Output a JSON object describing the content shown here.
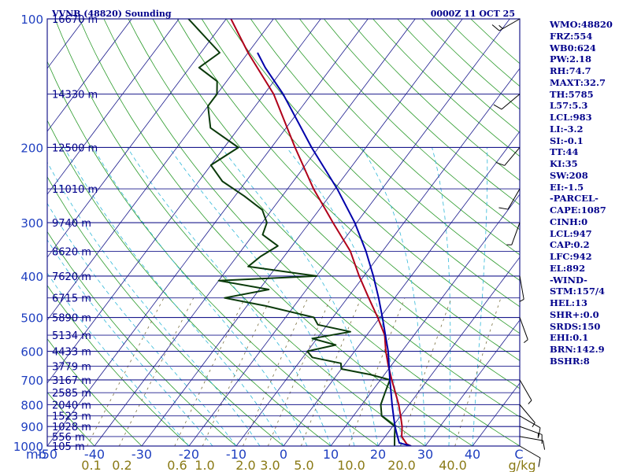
{
  "header": {
    "station": "VVNB (48820) Sounding",
    "time": "0000Z 11 OCT 25"
  },
  "indices": [
    "WMO:48820",
    "FRZ:554",
    "WB0:624",
    "PW:2.18",
    "RH:74.7",
    "MAXT:32.7",
    "TH:5785",
    "L57:5.3",
    "LCL:983",
    "LI:-3.2",
    "SI:-0.1",
    "TT:44",
    "KI:35",
    "SW:208",
    "EI:-1.5",
    "-PARCEL-",
    "CAPE:1087",
    "CINH:0",
    "LCL:947",
    "CAP:0.2",
    "LFC:942",
    "EL:892",
    "-WIND-",
    "STM:157/4",
    "HEL:13",
    "SHR+:0.0",
    "SRDS:150",
    "EHI:0.1",
    "BRN:142.9",
    "BSHR:8"
  ],
  "chart_data": {
    "type": "line",
    "diagram": "skew-T log-P",
    "pressure_axis": {
      "unit_label": "mb",
      "ticks": [
        100,
        200,
        300,
        400,
        500,
        600,
        700,
        800,
        900,
        1000
      ],
      "range": [
        1000,
        100
      ],
      "scale": "log"
    },
    "temperature_axis": {
      "unit_label": "C",
      "tick_labels": [
        "-50",
        "-40",
        "-30",
        "-20",
        "-10",
        "0",
        "10",
        "20",
        "30",
        "40"
      ],
      "ticks": [
        -50,
        -40,
        -30,
        -20,
        -10,
        0,
        10,
        20,
        30,
        40
      ],
      "range": [
        -50,
        50
      ]
    },
    "mixing_ratio_axis": {
      "unit_label": "g/kg",
      "tick_labels": [
        "0.1",
        "0.2",
        "0.6",
        "1.0",
        "2.0",
        "3.0",
        "5.0",
        "10.0",
        "20.0",
        "40.0"
      ]
    },
    "height_levels": [
      {
        "p": 100,
        "label": "16670 m"
      },
      {
        "p": 150,
        "label": "14330 m"
      },
      {
        "p": 200,
        "label": "12500 m"
      },
      {
        "p": 250,
        "label": "11010 m"
      },
      {
        "p": 300,
        "label": "9740 m"
      },
      {
        "p": 350,
        "label": "8620 m"
      },
      {
        "p": 400,
        "label": "7620 m"
      },
      {
        "p": 450,
        "label": "6715 m"
      },
      {
        "p": 500,
        "label": "5890 m"
      },
      {
        "p": 550,
        "label": "5134 m"
      },
      {
        "p": 600,
        "label": "4433 m"
      },
      {
        "p": 650,
        "label": "3779 m"
      },
      {
        "p": 700,
        "label": "3167 m"
      },
      {
        "p": 750,
        "label": "2585 m"
      },
      {
        "p": 800,
        "label": "2040 m"
      },
      {
        "p": 850,
        "label": "1523 m"
      },
      {
        "p": 900,
        "label": "1028 m"
      },
      {
        "p": 950,
        "label": "556 m"
      },
      {
        "p": 1000,
        "label": "105 m"
      }
    ],
    "series": [
      {
        "color": "#b0001a",
        "points": [
          [
            1000,
            27
          ],
          [
            990,
            25.8
          ],
          [
            950,
            23.5
          ],
          [
            900,
            22
          ],
          [
            850,
            20
          ],
          [
            800,
            17.8
          ],
          [
            750,
            15.2
          ],
          [
            700,
            12.4
          ],
          [
            650,
            9.5
          ],
          [
            600,
            6.6
          ],
          [
            550,
            3.8
          ],
          [
            500,
            -0.5
          ],
          [
            450,
            -5.5
          ],
          [
            400,
            -11
          ],
          [
            350,
            -16.8
          ],
          [
            300,
            -25
          ],
          [
            250,
            -34.5
          ],
          [
            200,
            -45
          ],
          [
            150,
            -58
          ],
          [
            120,
            -70
          ],
          [
            100,
            -79
          ]
        ]
      },
      {
        "color": "#0a3a0a",
        "points": [
          [
            1000,
            23.5
          ],
          [
            950,
            22
          ],
          [
            900,
            20.5
          ],
          [
            850,
            16
          ],
          [
            800,
            14
          ],
          [
            750,
            13
          ],
          [
            700,
            12
          ],
          [
            680,
            7
          ],
          [
            660,
            0
          ],
          [
            640,
            -1
          ],
          [
            620,
            -8
          ],
          [
            600,
            -10
          ],
          [
            580,
            -5
          ],
          [
            560,
            -11
          ],
          [
            540,
            -4
          ],
          [
            520,
            -12
          ],
          [
            500,
            -14
          ],
          [
            470,
            -26
          ],
          [
            450,
            -36
          ],
          [
            430,
            -28
          ],
          [
            410,
            -40
          ],
          [
            400,
            -20
          ],
          [
            380,
            -36
          ],
          [
            360,
            -35
          ],
          [
            340,
            -33
          ],
          [
            320,
            -38
          ],
          [
            300,
            -39
          ],
          [
            280,
            -42
          ],
          [
            260,
            -48
          ],
          [
            240,
            -55
          ],
          [
            220,
            -60
          ],
          [
            200,
            -57
          ],
          [
            180,
            -66
          ],
          [
            160,
            -70
          ],
          [
            150,
            -70
          ],
          [
            140,
            -72
          ],
          [
            130,
            -78
          ],
          [
            120,
            -76
          ],
          [
            100,
            -88
          ]
        ]
      },
      {
        "color": "#0000aa",
        "points": [
          [
            1000,
            27
          ],
          [
            983,
            24
          ],
          [
            947,
            22.5
          ],
          [
            900,
            20.5
          ],
          [
            850,
            18.5
          ],
          [
            800,
            16.4
          ],
          [
            700,
            12
          ],
          [
            600,
            7.1
          ],
          [
            500,
            0.5
          ],
          [
            450,
            -3.4
          ],
          [
            400,
            -8
          ],
          [
            350,
            -13.5
          ],
          [
            300,
            -20.4
          ],
          [
            250,
            -29.5
          ],
          [
            200,
            -41.5
          ],
          [
            150,
            -56
          ],
          [
            130,
            -64
          ],
          [
            120,
            -68
          ]
        ]
      }
    ],
    "wind_barbs": [
      {
        "p": 1000,
        "dir": 300,
        "kt": 10
      },
      {
        "p": 950,
        "dir": 280,
        "kt": 10
      },
      {
        "p": 900,
        "dir": 290,
        "kt": 15
      },
      {
        "p": 850,
        "dir": 300,
        "kt": 10
      },
      {
        "p": 800,
        "dir": 320,
        "kt": 5
      },
      {
        "p": 700,
        "dir": 330,
        "kt": 5
      },
      {
        "p": 500,
        "dir": 340,
        "kt": 5
      },
      {
        "p": 400,
        "dir": 350,
        "kt": 5
      },
      {
        "p": 300,
        "dir": 20,
        "kt": 5
      },
      {
        "p": 250,
        "dir": 30,
        "kt": 10
      },
      {
        "p": 200,
        "dir": 40,
        "kt": 10
      },
      {
        "p": 150,
        "dir": 50,
        "kt": 10
      },
      {
        "p": 100,
        "dir": 60,
        "kt": 15
      }
    ]
  }
}
